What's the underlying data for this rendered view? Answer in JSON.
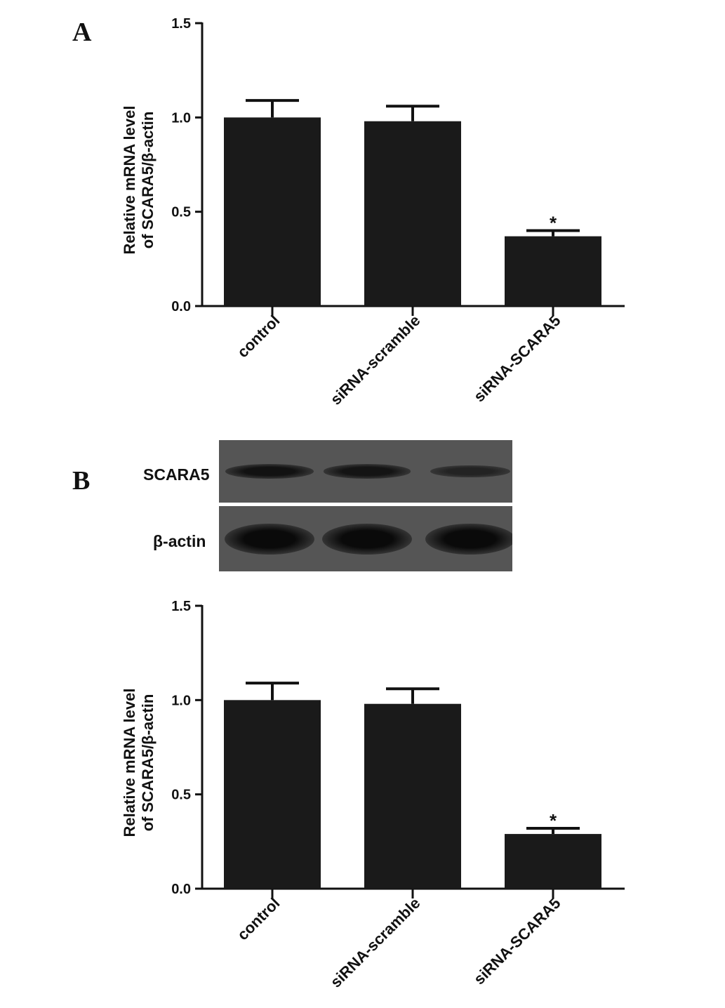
{
  "panels": {
    "a": {
      "letter": "A",
      "chart_data": {
        "type": "bar",
        "categories": [
          "control",
          "siRNA-scramble",
          "siRNA-SCARA5"
        ],
        "values": [
          1.0,
          0.98,
          0.37
        ],
        "errors": [
          0.09,
          0.08,
          0.03
        ],
        "significance": [
          "",
          "",
          "*"
        ],
        "ylabel_line1": "Relative mRNA level",
        "ylabel_line2": "of SCARA5/β-actin",
        "ylim": [
          0,
          1.5
        ],
        "yticks": [
          "0.0",
          "0.5",
          "1.0",
          "1.5"
        ],
        "bar_color": "#1a1a1a"
      }
    },
    "b": {
      "letter": "B",
      "blot": {
        "rows": [
          {
            "label": "SCARA5",
            "intensities": [
              0.85,
              0.8,
              0.5
            ]
          },
          {
            "label": "β-actin",
            "intensities": [
              1.0,
              1.0,
              1.0
            ]
          }
        ]
      },
      "chart_data": {
        "type": "bar",
        "categories": [
          "control",
          "siRNA-scramble",
          "siRNA-SCARA5"
        ],
        "values": [
          1.0,
          0.98,
          0.29
        ],
        "errors": [
          0.09,
          0.08,
          0.03
        ],
        "significance": [
          "",
          "",
          "*"
        ],
        "ylabel_line1": "Relative mRNA level",
        "ylabel_line2": "of SCARA5/β-actin",
        "ylim": [
          0,
          1.5
        ],
        "yticks": [
          "0.0",
          "0.5",
          "1.0",
          "1.5"
        ],
        "bar_color": "#1a1a1a"
      }
    }
  }
}
